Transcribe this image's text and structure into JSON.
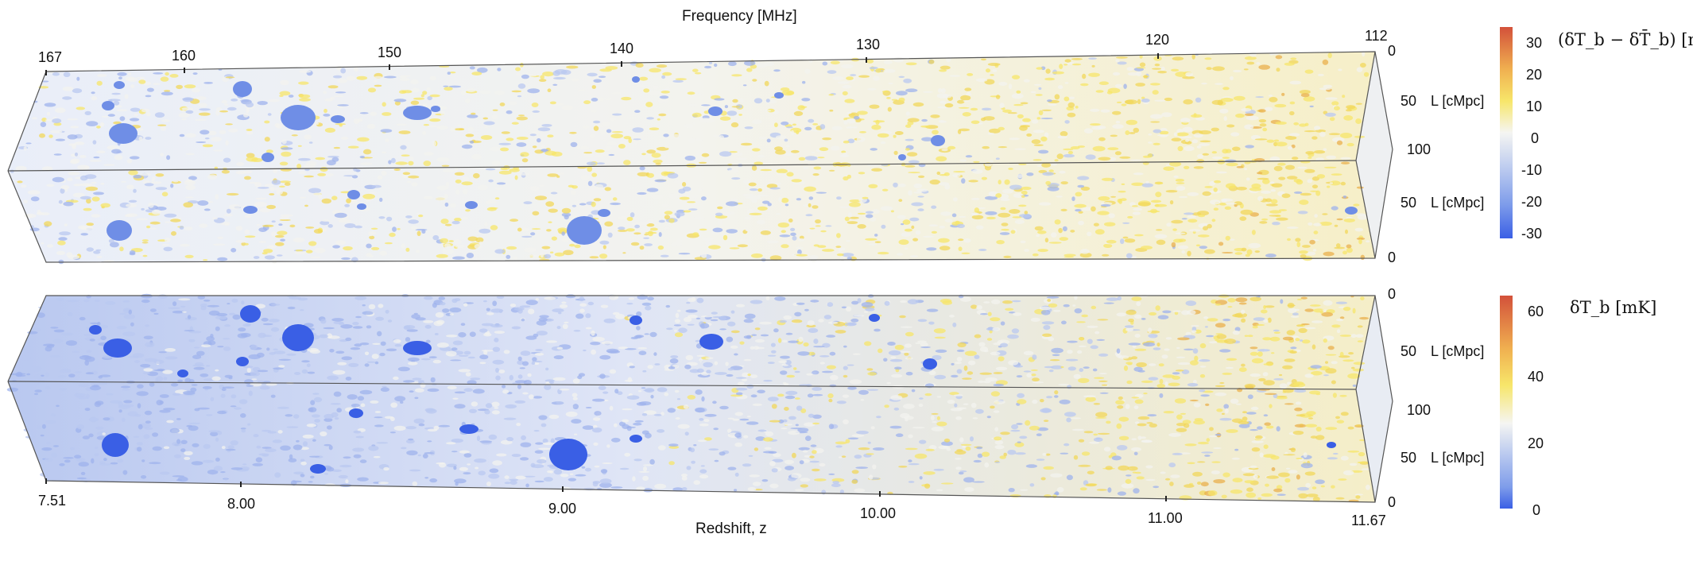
{
  "top_axis": {
    "title": "Frequency [MHz]",
    "ticks": [
      "167",
      "160",
      "150",
      "140",
      "130",
      "120",
      "112"
    ]
  },
  "bottom_axis": {
    "title": "Redshift, z",
    "ticks": [
      "7.51",
      "8.00",
      "9.00",
      "10.00",
      "11.00",
      "11.67"
    ]
  },
  "panel_top": {
    "depth_ticks_upper": [
      "0",
      "50",
      "100"
    ],
    "depth_ticks_lower": [
      "50",
      "0"
    ],
    "depth_label": "L [cMpc]"
  },
  "panel_bottom": {
    "depth_ticks_upper": [
      "0",
      "50",
      "100"
    ],
    "depth_ticks_lower": [
      "50",
      "0"
    ],
    "depth_label": "L [cMpc]"
  },
  "colorbar_top": {
    "title": "(δT_b − δT̄_b) [mK]",
    "ticks": [
      "30",
      "20",
      "10",
      "0",
      "-10",
      "-20",
      "-30"
    ],
    "colors": [
      "#d3513a",
      "#f0b050",
      "#f7e66a",
      "#f5f5f2",
      "#b8c8ef",
      "#7e9cea",
      "#3a5fe5"
    ]
  },
  "colorbar_bottom": {
    "title": "δT_b [mK]",
    "ticks": [
      "60",
      "40",
      "20",
      "0"
    ],
    "colors": [
      "#d3513a",
      "#f0b050",
      "#f7e66a",
      "#f5f5f2",
      "#b8c8ef",
      "#7e9cea",
      "#3a5fe5"
    ]
  }
}
